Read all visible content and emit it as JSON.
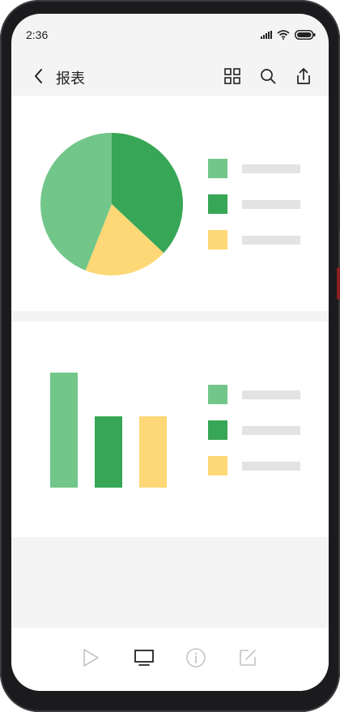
{
  "status": {
    "time": "2:36"
  },
  "header": {
    "title": "报表"
  },
  "colors": {
    "light_green": "#72c68a",
    "dark_green": "#37a656",
    "yellow": "#fed876"
  },
  "pie_legend": [
    {
      "label": "",
      "color": "#72c68a"
    },
    {
      "label": "",
      "color": "#37a656"
    },
    {
      "label": "",
      "color": "#fed876"
    }
  ],
  "bar_legend": [
    {
      "label": "",
      "color": "#72c68a"
    },
    {
      "label": "",
      "color": "#37a656"
    },
    {
      "label": "",
      "color": "#fed876"
    }
  ],
  "icons": {
    "back": "back-arrow-icon",
    "grid": "grid-icon",
    "search": "search-icon",
    "share": "share-icon",
    "play": "play-icon",
    "monitor": "monitor-icon",
    "info": "info-icon",
    "edit": "edit-icon"
  },
  "chart_data": [
    {
      "type": "pie",
      "values": [
        37,
        19,
        44
      ],
      "colors": [
        "#37a656",
        "#fed876",
        "#72c68a"
      ],
      "legend": "right"
    },
    {
      "type": "bar",
      "values": [
        100,
        62,
        62
      ],
      "colors": [
        "#72c68a",
        "#37a656",
        "#fed876"
      ],
      "ylim": [
        0,
        100
      ],
      "legend": "right"
    }
  ]
}
